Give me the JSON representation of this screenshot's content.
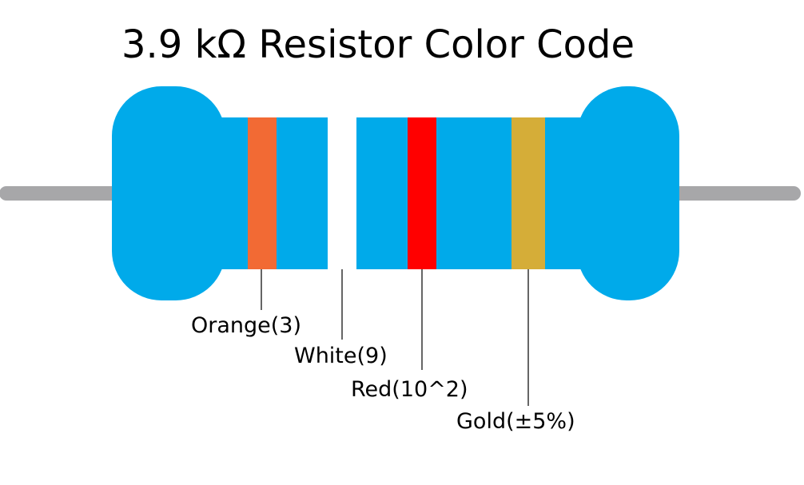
{
  "title": "3.9 kΩ Resistor Color Code",
  "colors": {
    "body": "#00aaea",
    "lead": "#a7a7a9",
    "leader_line": "#000000",
    "text": "#000000"
  },
  "bands": [
    {
      "name": "orange",
      "color": "#f26a34",
      "label": "Orange(3)"
    },
    {
      "name": "white",
      "color": "#ffffff",
      "label": "White(9)"
    },
    {
      "name": "red",
      "color": "#ff0000",
      "label": "Red(10^2)"
    },
    {
      "name": "gold",
      "color": "#d5ad38",
      "label": "Gold(±5%)"
    }
  ]
}
